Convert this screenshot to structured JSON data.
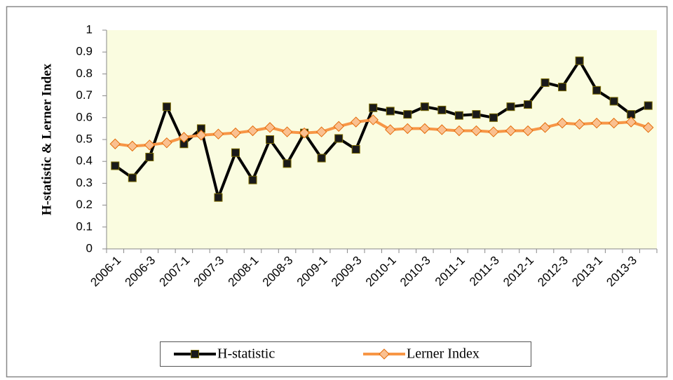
{
  "chart_data": {
    "type": "line",
    "y_label": "H-statistic & Lerner Index",
    "categories": [
      "2006-1",
      null,
      "2006-3",
      null,
      "2007-1",
      null,
      "2007-3",
      null,
      "2008-1",
      null,
      "2008-3",
      null,
      "2009-1",
      null,
      "2009-3",
      null,
      "2010-1",
      null,
      "2010-3",
      null,
      "2011-1",
      null,
      "2011-3",
      null,
      "2012-1",
      null,
      "2012-3",
      null,
      "2013-1",
      null,
      "2013-3",
      null
    ],
    "series": [
      {
        "name": "H-statistic",
        "color": "#000000",
        "marker": "square",
        "marker_color": "#1a1a1a",
        "values": [
          0.38,
          0.325,
          0.42,
          0.65,
          0.48,
          0.55,
          0.235,
          0.44,
          0.315,
          0.5,
          0.39,
          0.53,
          0.415,
          0.505,
          0.455,
          0.645,
          0.63,
          0.615,
          0.65,
          0.635,
          0.61,
          0.615,
          0.6,
          0.65,
          0.66,
          0.76,
          0.74,
          0.86,
          0.725,
          0.675,
          0.615,
          0.655
        ]
      },
      {
        "name": "Lerner Index",
        "color": "#f79646",
        "marker": "diamond",
        "marker_color": "#fac090",
        "values": [
          0.48,
          0.47,
          0.475,
          0.485,
          0.51,
          0.52,
          0.525,
          0.53,
          0.54,
          0.555,
          0.535,
          0.53,
          0.535,
          0.56,
          0.58,
          0.59,
          0.545,
          0.55,
          0.55,
          0.545,
          0.54,
          0.54,
          0.535,
          0.54,
          0.54,
          0.555,
          0.575,
          0.57,
          0.575,
          0.575,
          0.58,
          0.555
        ]
      }
    ],
    "ylim": [
      0,
      1
    ],
    "yticks": [
      0,
      0.1,
      0.2,
      0.3,
      0.4,
      0.5,
      0.6,
      0.7,
      0.8,
      0.9,
      1
    ],
    "plot_background": "#fafce0",
    "legend_position": "bottom"
  }
}
